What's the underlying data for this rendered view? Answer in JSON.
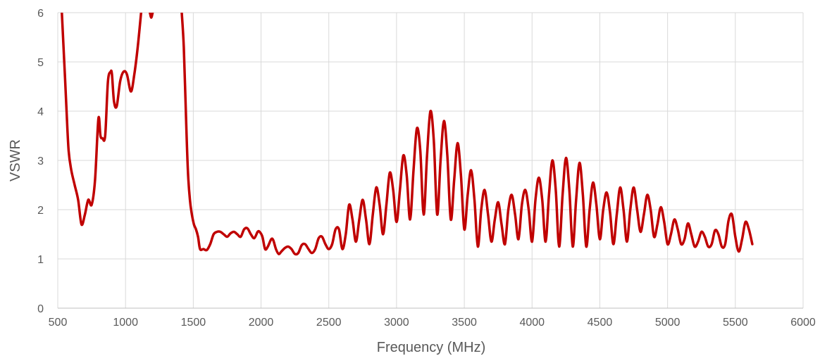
{
  "chart_data": {
    "type": "line",
    "title": "",
    "xlabel": "Frequency (MHz)",
    "ylabel": "VSWR",
    "xlim": [
      500,
      6000
    ],
    "ylim": [
      0,
      6
    ],
    "x_ticks": [
      "500",
      "1000",
      "1500",
      "2000",
      "2500",
      "3000",
      "3500",
      "4000",
      "4500",
      "5000",
      "5500",
      "6000"
    ],
    "y_ticks": [
      "0",
      "1",
      "2",
      "3",
      "4",
      "5",
      "6"
    ],
    "grid": true,
    "legend": "none",
    "series": [
      {
        "color": "#C00000",
        "segments": [
          [
            [
              530,
              6.0
            ],
            [
              548,
              5.0
            ],
            [
              565,
              4.0
            ],
            [
              580,
              3.2
            ],
            [
              600,
              2.8
            ],
            [
              625,
              2.5
            ],
            [
              650,
              2.2
            ],
            [
              675,
              1.7
            ],
            [
              700,
              1.9
            ],
            [
              725,
              2.2
            ],
            [
              750,
              2.1
            ],
            [
              775,
              2.6
            ],
            [
              800,
              3.85
            ],
            [
              815,
              3.5
            ],
            [
              830,
              3.45
            ],
            [
              850,
              3.5
            ],
            [
              870,
              4.6
            ],
            [
              890,
              4.8
            ],
            [
              900,
              4.75
            ],
            [
              915,
              4.2
            ],
            [
              935,
              4.1
            ],
            [
              960,
              4.6
            ],
            [
              985,
              4.8
            ],
            [
              1010,
              4.75
            ],
            [
              1040,
              4.4
            ],
            [
              1065,
              4.75
            ],
            [
              1090,
              5.3
            ],
            [
              1115,
              6.0
            ]
          ],
          [
            [
              1180,
              6.0
            ],
            [
              1190,
              5.9
            ],
            [
              1200,
              6.0
            ]
          ],
          [
            [
              1415,
              6.0
            ],
            [
              1430,
              5.3
            ],
            [
              1445,
              4.0
            ],
            [
              1460,
              2.8
            ],
            [
              1475,
              2.2
            ],
            [
              1490,
              1.9
            ],
            [
              1505,
              1.7
            ],
            [
              1520,
              1.6
            ],
            [
              1535,
              1.45
            ],
            [
              1550,
              1.2
            ],
            [
              1575,
              1.2
            ],
            [
              1600,
              1.18
            ],
            [
              1625,
              1.3
            ],
            [
              1650,
              1.5
            ],
            [
              1675,
              1.55
            ],
            [
              1700,
              1.55
            ],
            [
              1725,
              1.5
            ],
            [
              1750,
              1.45
            ],
            [
              1775,
              1.52
            ],
            [
              1800,
              1.55
            ],
            [
              1825,
              1.5
            ],
            [
              1850,
              1.45
            ],
            [
              1875,
              1.6
            ],
            [
              1900,
              1.62
            ],
            [
              1925,
              1.5
            ],
            [
              1950,
              1.42
            ],
            [
              1975,
              1.55
            ],
            [
              1990,
              1.55
            ],
            [
              2010,
              1.45
            ],
            [
              2030,
              1.2
            ],
            [
              2050,
              1.25
            ],
            [
              2075,
              1.4
            ],
            [
              2090,
              1.38
            ],
            [
              2110,
              1.2
            ],
            [
              2130,
              1.1
            ],
            [
              2150,
              1.15
            ],
            [
              2175,
              1.22
            ],
            [
              2200,
              1.25
            ],
            [
              2225,
              1.2
            ],
            [
              2250,
              1.1
            ],
            [
              2275,
              1.12
            ],
            [
              2300,
              1.28
            ],
            [
              2325,
              1.3
            ],
            [
              2350,
              1.2
            ],
            [
              2375,
              1.12
            ],
            [
              2400,
              1.2
            ],
            [
              2425,
              1.42
            ],
            [
              2450,
              1.45
            ],
            [
              2475,
              1.3
            ],
            [
              2500,
              1.2
            ],
            [
              2525,
              1.3
            ],
            [
              2550,
              1.6
            ],
            [
              2575,
              1.6
            ],
            [
              2600,
              1.2
            ],
            [
              2625,
              1.5
            ],
            [
              2650,
              2.1
            ],
            [
              2675,
              1.8
            ],
            [
              2700,
              1.35
            ],
            [
              2725,
              1.8
            ],
            [
              2750,
              2.2
            ],
            [
              2775,
              1.8
            ],
            [
              2800,
              1.3
            ],
            [
              2825,
              1.9
            ],
            [
              2850,
              2.45
            ],
            [
              2875,
              2.1
            ],
            [
              2900,
              1.5
            ],
            [
              2925,
              2.1
            ],
            [
              2950,
              2.75
            ],
            [
              2975,
              2.4
            ],
            [
              3000,
              1.75
            ],
            [
              3025,
              2.4
            ],
            [
              3050,
              3.1
            ],
            [
              3075,
              2.7
            ],
            [
              3100,
              1.8
            ],
            [
              3125,
              2.8
            ],
            [
              3150,
              3.65
            ],
            [
              3175,
              3.2
            ],
            [
              3200,
              1.9
            ],
            [
              3225,
              3.1
            ],
            [
              3250,
              4.0
            ],
            [
              3275,
              3.4
            ],
            [
              3300,
              1.9
            ],
            [
              3325,
              3.0
            ],
            [
              3350,
              3.8
            ],
            [
              3375,
              3.1
            ],
            [
              3400,
              1.8
            ],
            [
              3425,
              2.6
            ],
            [
              3450,
              3.35
            ],
            [
              3475,
              2.7
            ],
            [
              3500,
              1.6
            ],
            [
              3525,
              2.3
            ],
            [
              3550,
              2.8
            ],
            [
              3575,
              2.2
            ],
            [
              3600,
              1.25
            ],
            [
              3625,
              2.0
            ],
            [
              3650,
              2.4
            ],
            [
              3675,
              1.9
            ],
            [
              3700,
              1.35
            ],
            [
              3725,
              1.8
            ],
            [
              3750,
              2.15
            ],
            [
              3775,
              1.7
            ],
            [
              3800,
              1.3
            ],
            [
              3825,
              2.0
            ],
            [
              3850,
              2.3
            ],
            [
              3875,
              1.9
            ],
            [
              3900,
              1.4
            ],
            [
              3925,
              2.1
            ],
            [
              3950,
              2.4
            ],
            [
              3975,
              2.0
            ],
            [
              4000,
              1.35
            ],
            [
              4025,
              2.2
            ],
            [
              4050,
              2.65
            ],
            [
              4075,
              2.2
            ],
            [
              4100,
              1.35
            ],
            [
              4125,
              2.3
            ],
            [
              4150,
              3.0
            ],
            [
              4175,
              2.4
            ],
            [
              4200,
              1.25
            ],
            [
              4225,
              2.3
            ],
            [
              4250,
              3.05
            ],
            [
              4275,
              2.4
            ],
            [
              4300,
              1.25
            ],
            [
              4325,
              2.2
            ],
            [
              4350,
              2.95
            ],
            [
              4375,
              2.3
            ],
            [
              4400,
              1.25
            ],
            [
              4425,
              2.0
            ],
            [
              4450,
              2.55
            ],
            [
              4475,
              2.1
            ],
            [
              4500,
              1.4
            ],
            [
              4525,
              2.0
            ],
            [
              4550,
              2.35
            ],
            [
              4575,
              1.95
            ],
            [
              4600,
              1.3
            ],
            [
              4625,
              1.9
            ],
            [
              4650,
              2.45
            ],
            [
              4675,
              2.0
            ],
            [
              4700,
              1.35
            ],
            [
              4725,
              2.0
            ],
            [
              4750,
              2.45
            ],
            [
              4775,
              2.0
            ],
            [
              4800,
              1.55
            ],
            [
              4825,
              1.9
            ],
            [
              4850,
              2.3
            ],
            [
              4875,
              2.0
            ],
            [
              4900,
              1.45
            ],
            [
              4925,
              1.7
            ],
            [
              4950,
              2.05
            ],
            [
              4975,
              1.75
            ],
            [
              5000,
              1.3
            ],
            [
              5025,
              1.5
            ],
            [
              5050,
              1.8
            ],
            [
              5075,
              1.6
            ],
            [
              5100,
              1.3
            ],
            [
              5125,
              1.4
            ],
            [
              5150,
              1.72
            ],
            [
              5175,
              1.5
            ],
            [
              5200,
              1.25
            ],
            [
              5225,
              1.35
            ],
            [
              5250,
              1.55
            ],
            [
              5275,
              1.45
            ],
            [
              5300,
              1.25
            ],
            [
              5325,
              1.3
            ],
            [
              5350,
              1.58
            ],
            [
              5375,
              1.5
            ],
            [
              5400,
              1.25
            ],
            [
              5425,
              1.3
            ],
            [
              5450,
              1.78
            ],
            [
              5475,
              1.9
            ],
            [
              5500,
              1.45
            ],
            [
              5525,
              1.15
            ],
            [
              5550,
              1.4
            ],
            [
              5575,
              1.75
            ],
            [
              5600,
              1.6
            ],
            [
              5625,
              1.3
            ]
          ]
        ]
      }
    ]
  }
}
